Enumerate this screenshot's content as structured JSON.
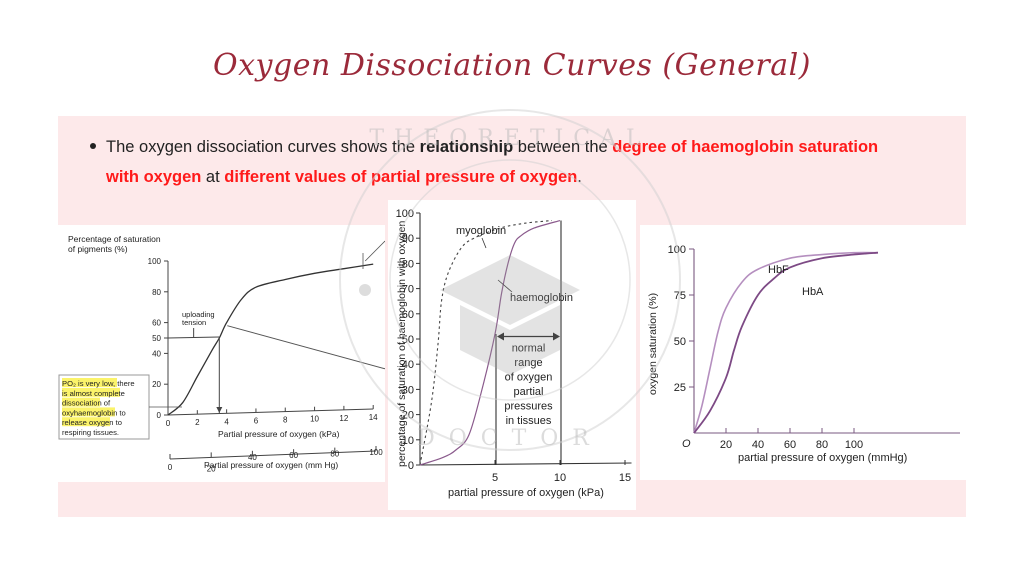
{
  "slide": {
    "title": "Oxygen Dissociation Curves (General)",
    "bullet": {
      "t1": "The oxygen dissociation curves shows the ",
      "t2": "relationship",
      "t3": " between the ",
      "t4": "degree of haemoglobin saturation",
      "t5": "with oxygen",
      "t6": " at ",
      "t7": "different values of partial pressure of oxygen",
      "t8": "."
    },
    "colors": {
      "title": "#9b2a3a",
      "accent_red": "#ff1a1a",
      "panel_bg": "#fde9ea",
      "curve_purple": "#8a5a8c"
    },
    "watermark": {
      "top_text": "THEORETICAL",
      "bottom_text": "DOCTOR"
    }
  },
  "chart_data": [
    {
      "type": "line",
      "title": "",
      "ylabel": "Percentage of saturation of pigments (%)",
      "xlabel": "Partial pressure of oxygen (kPa)",
      "xlabel2": "Partial pressure of oxygen (mm Hg)",
      "x_ticks": [
        "0",
        "2",
        "4",
        "6",
        "8",
        "10",
        "12",
        "14"
      ],
      "x2_ticks": [
        "0",
        "20",
        "40",
        "60",
        "80",
        "100"
      ],
      "y_ticks": [
        "0",
        "20",
        "40",
        "50",
        "60",
        "80",
        "100"
      ],
      "xlim": [
        0,
        14
      ],
      "ylim": [
        0,
        100
      ],
      "annotation_uploading": "uploading tension",
      "annotation_box": "PO₂ is very low, there is almost complete dissociation of oxyhaemoglobin to release oxygen to respiring tissues.",
      "series": [
        {
          "name": "haemoglobin",
          "x": [
            0,
            1,
            2,
            3,
            3.5,
            4,
            5,
            6,
            8,
            10,
            12,
            14
          ],
          "y": [
            0,
            8,
            25,
            42,
            50,
            60,
            75,
            83,
            88,
            92,
            95,
            98
          ]
        }
      ],
      "marker": {
        "x": 3.5,
        "y": 50
      }
    },
    {
      "type": "line",
      "title": "",
      "ylabel": "percentage of saturation of haemoglobin with oxygen",
      "xlabel": "partial pressure of oxygen (kPa)",
      "x_ticks": [
        "5",
        "10",
        "15"
      ],
      "y_ticks": [
        "0",
        "10",
        "20",
        "30",
        "40",
        "50",
        "60",
        "70",
        "80",
        "90",
        "100"
      ],
      "xlim": [
        0,
        15
      ],
      "ylim": [
        0,
        100
      ],
      "range_label": "normal range of oxygen partial pressures in tissues",
      "range_kpa": [
        5,
        10
      ],
      "series": [
        {
          "name": "myoglobin",
          "style": "dashed",
          "x": [
            0,
            0.5,
            1,
            1.5,
            2,
            3,
            4,
            6,
            8,
            10
          ],
          "y": [
            0,
            25,
            48,
            65,
            76,
            86,
            90,
            94,
            96,
            97
          ]
        },
        {
          "name": "haemoglobin",
          "style": "solid",
          "x": [
            0,
            1,
            2,
            3,
            4,
            5,
            5.5,
            6,
            6.5,
            7,
            8,
            10
          ],
          "y": [
            0,
            3,
            6,
            12,
            30,
            52,
            68,
            80,
            88,
            91,
            94,
            97
          ]
        }
      ]
    },
    {
      "type": "line",
      "title": "",
      "ylabel": "oxygen saturation (%)",
      "xlabel": "partial pressure of oxygen (mmHg)",
      "origin_label": "O",
      "x_ticks": [
        "20",
        "40",
        "60",
        "80",
        "100"
      ],
      "y_ticks": [
        "25",
        "50",
        "75",
        "100"
      ],
      "xlim": [
        0,
        115
      ],
      "ylim": [
        0,
        100
      ],
      "series": [
        {
          "name": "HbF",
          "x": [
            0,
            5,
            10,
            15,
            20,
            30,
            40,
            60,
            80,
            100,
            115
          ],
          "y": [
            0,
            15,
            35,
            55,
            68,
            82,
            89,
            95,
            97,
            98,
            98
          ]
        },
        {
          "name": "HbA",
          "x": [
            0,
            10,
            20,
            25,
            30,
            40,
            50,
            60,
            80,
            100,
            115
          ],
          "y": [
            0,
            12,
            30,
            45,
            58,
            75,
            84,
            90,
            95,
            97,
            98
          ]
        }
      ]
    }
  ]
}
